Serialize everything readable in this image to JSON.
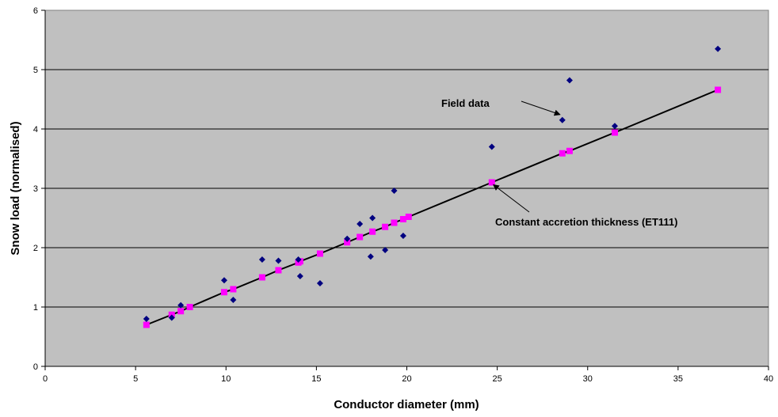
{
  "chart_data": {
    "type": "scatter",
    "title": "",
    "xlabel": "Conductor diameter (mm)",
    "ylabel": "Snow load (normalised)",
    "xlim": [
      0,
      40
    ],
    "ylim": [
      0,
      6
    ],
    "x_ticks": [
      "0",
      "5",
      "10",
      "15",
      "20",
      "25",
      "30",
      "35",
      "40"
    ],
    "y_ticks": [
      "0",
      "1",
      "2",
      "3",
      "4",
      "5",
      "6"
    ],
    "grid": "horizontal",
    "plot_background": "#c0c0c0",
    "series": [
      {
        "name": "Field data",
        "marker": "diamond",
        "color": "#000080",
        "points": [
          [
            5.6,
            0.8
          ],
          [
            7.0,
            0.82
          ],
          [
            7.5,
            1.03
          ],
          [
            9.9,
            1.45
          ],
          [
            10.4,
            1.12
          ],
          [
            12.0,
            1.8
          ],
          [
            12.9,
            1.78
          ],
          [
            14.0,
            1.8
          ],
          [
            14.1,
            1.52
          ],
          [
            15.2,
            1.4
          ],
          [
            16.7,
            2.15
          ],
          [
            17.4,
            2.4
          ],
          [
            18.0,
            1.85
          ],
          [
            18.1,
            2.5
          ],
          [
            18.8,
            1.96
          ],
          [
            19.3,
            2.96
          ],
          [
            19.8,
            2.2
          ],
          [
            24.7,
            3.7
          ],
          [
            28.6,
            4.15
          ],
          [
            29.0,
            4.82
          ],
          [
            31.5,
            4.05
          ],
          [
            37.2,
            5.35
          ]
        ]
      },
      {
        "name": "Constant accretion thickness (ET111)",
        "marker": "square",
        "color": "#ff00ff",
        "line_color": "#000000",
        "points": [
          [
            5.6,
            0.7
          ],
          [
            7.0,
            0.87
          ],
          [
            7.5,
            0.93
          ],
          [
            8.0,
            1.0
          ],
          [
            9.9,
            1.25
          ],
          [
            10.4,
            1.3
          ],
          [
            12.0,
            1.5
          ],
          [
            12.9,
            1.62
          ],
          [
            14.0,
            1.75
          ],
          [
            14.1,
            1.77
          ],
          [
            15.2,
            1.9
          ],
          [
            16.7,
            2.09
          ],
          [
            17.4,
            2.18
          ],
          [
            18.1,
            2.27
          ],
          [
            18.8,
            2.35
          ],
          [
            19.3,
            2.42
          ],
          [
            19.8,
            2.48
          ],
          [
            20.1,
            2.52
          ],
          [
            24.7,
            3.1
          ],
          [
            28.6,
            3.59
          ],
          [
            29.0,
            3.63
          ],
          [
            31.5,
            3.94
          ],
          [
            37.2,
            4.66
          ]
        ]
      }
    ],
    "annotations": [
      {
        "text": "Field data",
        "points_to": [
          28.6,
          4.15
        ]
      },
      {
        "text": "Constant accretion thickness (ET111)",
        "points_to": [
          24.7,
          3.1
        ]
      }
    ]
  }
}
